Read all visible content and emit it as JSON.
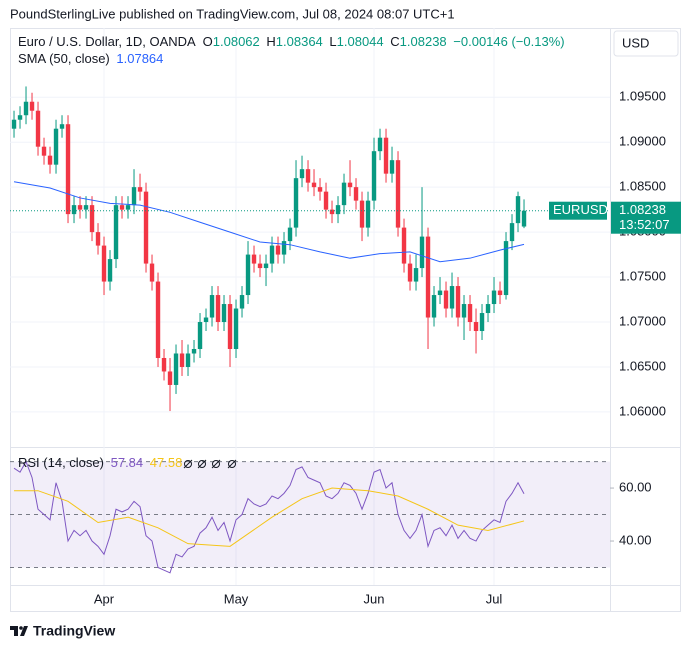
{
  "header": {
    "text": "PoundSterlingLive published on TradingView.com, Jul 08, 2024 08:07 UTC+1"
  },
  "currency": "USD",
  "brand": "TradingView",
  "chart_data": {
    "type": "candlestick",
    "title": "Euro / U.S. Dollar, 1D, OANDA",
    "ohlc_labels": [
      "O",
      "H",
      "L",
      "C"
    ],
    "change": "−0.00146 (−0.13%)",
    "up_color": "#089981",
    "down_color": "#f23645",
    "grid": true,
    "xlim": [
      -0.67,
      99.33
    ],
    "xticks": [
      {
        "value": 15,
        "label": "Apr"
      },
      {
        "value": 37,
        "label": "May"
      },
      {
        "value": 60,
        "label": "Jun"
      },
      {
        "value": 80,
        "label": "Jul"
      }
    ],
    "ylim": [
      1.0561,
      1.1027
    ],
    "yticks": [
      {
        "value": 1.06,
        "label": "1.06000"
      },
      {
        "value": 1.065,
        "label": "1.06500"
      },
      {
        "value": 1.07,
        "label": "1.07000"
      },
      {
        "value": 1.075,
        "label": "1.07500"
      },
      {
        "value": 1.08,
        "label": "1.08000"
      },
      {
        "value": 1.085,
        "label": "1.08500"
      },
      {
        "value": 1.09,
        "label": "1.09000"
      },
      {
        "value": 1.095,
        "label": "1.09500"
      }
    ],
    "last_price": {
      "symbol": "EURUSD",
      "countdown": "13:52:07"
    },
    "candles": [
      [
        1.0915,
        1.0935,
        1.0905,
        1.0925
      ],
      [
        1.0925,
        1.094,
        1.0915,
        1.093
      ],
      [
        1.093,
        1.0962,
        1.092,
        1.0945
      ],
      [
        1.0945,
        1.0955,
        1.0925,
        1.0935
      ],
      [
        1.0935,
        1.0945,
        1.0885,
        1.0895
      ],
      [
        1.0895,
        1.0905,
        1.0875,
        1.0885
      ],
      [
        1.0885,
        1.0895,
        1.0865,
        1.0875
      ],
      [
        1.0875,
        1.0925,
        1.0865,
        1.0915
      ],
      [
        1.0915,
        1.093,
        1.0905,
        1.092
      ],
      [
        1.092,
        1.093,
        1.081,
        1.082
      ],
      [
        1.082,
        1.084,
        1.081,
        1.083
      ],
      [
        1.083,
        1.084,
        1.0815,
        1.0825
      ],
      [
        1.0825,
        1.084,
        1.0815,
        1.083
      ],
      [
        1.083,
        1.084,
        1.079,
        1.08
      ],
      [
        1.08,
        1.081,
        1.0775,
        1.0785
      ],
      [
        1.0785,
        1.0795,
        1.073,
        1.0745
      ],
      [
        1.0745,
        1.078,
        1.0735,
        1.077
      ],
      [
        1.077,
        1.084,
        1.076,
        1.083
      ],
      [
        1.083,
        1.084,
        1.0815,
        1.0825
      ],
      [
        1.0825,
        1.084,
        1.0815,
        1.083
      ],
      [
        1.083,
        1.087,
        1.082,
        1.085
      ],
      [
        1.085,
        1.0865,
        1.0835,
        1.0845
      ],
      [
        1.0845,
        1.0855,
        1.0755,
        1.0765
      ],
      [
        1.0765,
        1.0775,
        1.0735,
        1.0745
      ],
      [
        1.0745,
        1.0755,
        1.065,
        1.066
      ],
      [
        1.066,
        1.067,
        1.0635,
        1.0645
      ],
      [
        1.0645,
        1.066,
        1.0601,
        1.063
      ],
      [
        1.063,
        1.0675,
        1.062,
        1.0665
      ],
      [
        1.0665,
        1.068,
        1.064,
        1.065
      ],
      [
        1.065,
        1.0675,
        1.064,
        1.0665
      ],
      [
        1.0665,
        1.068,
        1.0655,
        1.067
      ],
      [
        1.067,
        1.071,
        1.066,
        1.07
      ],
      [
        1.07,
        1.0715,
        1.069,
        1.0705
      ],
      [
        1.0705,
        1.074,
        1.0695,
        1.073
      ],
      [
        1.073,
        1.074,
        1.069,
        1.07
      ],
      [
        1.07,
        1.073,
        1.069,
        1.072
      ],
      [
        1.072,
        1.073,
        1.065,
        1.067
      ],
      [
        1.067,
        1.0725,
        1.066,
        1.0715
      ],
      [
        1.0715,
        1.074,
        1.0705,
        1.073
      ],
      [
        1.073,
        1.079,
        1.072,
        1.0775
      ],
      [
        1.0775,
        1.0785,
        1.0755,
        1.0765
      ],
      [
        1.0765,
        1.0775,
        1.075,
        1.076
      ],
      [
        1.076,
        1.0775,
        1.074,
        1.0765
      ],
      [
        1.0765,
        1.0795,
        1.0755,
        1.0785
      ],
      [
        1.0785,
        1.0795,
        1.0765,
        1.0775
      ],
      [
        1.0775,
        1.08,
        1.0765,
        1.079
      ],
      [
        1.079,
        1.0815,
        1.078,
        1.0805
      ],
      [
        1.0805,
        1.088,
        1.0795,
        1.086
      ],
      [
        1.086,
        1.0885,
        1.085,
        1.087
      ],
      [
        1.087,
        1.088,
        1.0845,
        1.0855
      ],
      [
        1.0855,
        1.087,
        1.084,
        1.085
      ],
      [
        1.085,
        1.086,
        1.0835,
        1.0845
      ],
      [
        1.0845,
        1.0855,
        1.0815,
        1.0825
      ],
      [
        1.0825,
        1.0835,
        1.081,
        1.082
      ],
      [
        1.082,
        1.084,
        1.081,
        1.083
      ],
      [
        1.083,
        1.0865,
        1.082,
        1.0855
      ],
      [
        1.0855,
        1.088,
        1.084,
        1.085
      ],
      [
        1.085,
        1.086,
        1.0825,
        1.0835
      ],
      [
        1.0835,
        1.0845,
        1.079,
        1.0805
      ],
      [
        1.0805,
        1.0845,
        1.0795,
        1.0835
      ],
      [
        1.0835,
        1.0905,
        1.0825,
        1.089
      ],
      [
        1.089,
        1.0915,
        1.088,
        1.0905
      ],
      [
        1.0905,
        1.0915,
        1.0855,
        1.0865
      ],
      [
        1.0865,
        1.0895,
        1.0855,
        1.088
      ],
      [
        1.088,
        1.089,
        1.0795,
        1.0805
      ],
      [
        1.0805,
        1.0815,
        1.0755,
        1.0765
      ],
      [
        1.0765,
        1.0775,
        1.0735,
        1.0745
      ],
      [
        1.0745,
        1.0775,
        1.0735,
        1.076
      ],
      [
        1.076,
        1.085,
        1.075,
        1.0795
      ],
      [
        1.0795,
        1.0805,
        1.067,
        1.0705
      ],
      [
        1.0705,
        1.074,
        1.0695,
        1.073
      ],
      [
        1.073,
        1.075,
        1.072,
        1.0735
      ],
      [
        1.0735,
        1.0745,
        1.0705,
        1.0715
      ],
      [
        1.0715,
        1.0755,
        1.0705,
        1.074
      ],
      [
        1.074,
        1.075,
        1.0695,
        1.0705
      ],
      [
        1.0705,
        1.073,
        1.068,
        1.072
      ],
      [
        1.072,
        1.073,
        1.069,
        1.07
      ],
      [
        1.07,
        1.0715,
        1.0665,
        1.069
      ],
      [
        1.069,
        1.072,
        1.068,
        1.071
      ],
      [
        1.071,
        1.073,
        1.07,
        1.072
      ],
      [
        1.072,
        1.075,
        1.071,
        1.0735
      ],
      [
        1.0735,
        1.0745,
        1.072,
        1.073
      ],
      [
        1.073,
        1.08,
        1.0725,
        1.079
      ],
      [
        1.079,
        1.082,
        1.078,
        1.081
      ],
      [
        1.081,
        1.0845,
        1.08,
        1.084
      ],
      [
        1.08062,
        1.08364,
        1.08044,
        1.08238
      ]
    ],
    "sma": {
      "name": "SMA (50, close)",
      "color": "#2962ff",
      "x": [
        0,
        6,
        11,
        16,
        21,
        26,
        31,
        36,
        41,
        46,
        51,
        56,
        61,
        66,
        71,
        76,
        81,
        85
      ],
      "values": [
        1.0856,
        1.0849,
        1.0838,
        1.0832,
        1.083,
        1.0822,
        1.0811,
        1.08,
        1.0789,
        1.0786,
        1.0778,
        1.0771,
        1.0776,
        1.0778,
        1.0767,
        1.0771,
        1.078,
        1.07864
      ]
    },
    "rsi": {
      "name": "RSI (14, close)",
      "color": "#7e57c2",
      "ylim": [
        23.4,
        75.5
      ],
      "yticks": [
        {
          "value": 40,
          "label": "40.00"
        },
        {
          "value": 60,
          "label": "60.00"
        }
      ],
      "band": [
        30,
        70
      ],
      "levels": [
        70,
        50,
        30
      ],
      "values": [
        67.5,
        66,
        70,
        64,
        52,
        50,
        48,
        62,
        55,
        40,
        44,
        42,
        44,
        40,
        38,
        35,
        42,
        52,
        51,
        52,
        55,
        53,
        42,
        40,
        30,
        29,
        28,
        35,
        34,
        37,
        38,
        43,
        45,
        49,
        44,
        47,
        40,
        48,
        50,
        56,
        54,
        53,
        54,
        57,
        56,
        58,
        61,
        67,
        68,
        64,
        63,
        62,
        57,
        56,
        58,
        62,
        61,
        58,
        52,
        58,
        66,
        67,
        60,
        62,
        50,
        44,
        41,
        44,
        50,
        38,
        44,
        45,
        42,
        46,
        41,
        44,
        41,
        40,
        44,
        46,
        48,
        47,
        55,
        58,
        62,
        57.84
      ],
      "ma": {
        "color": "#f5c518",
        "x": [
          0,
          4,
          9,
          14,
          19,
          24,
          29,
          36,
          43,
          48,
          53,
          59,
          64,
          69,
          74,
          79,
          85
        ],
        "values": [
          59,
          59,
          55,
          47,
          49,
          45,
          39,
          38,
          49,
          56,
          60,
          59,
          57,
          52,
          46,
          44,
          47.58
        ]
      }
    }
  }
}
